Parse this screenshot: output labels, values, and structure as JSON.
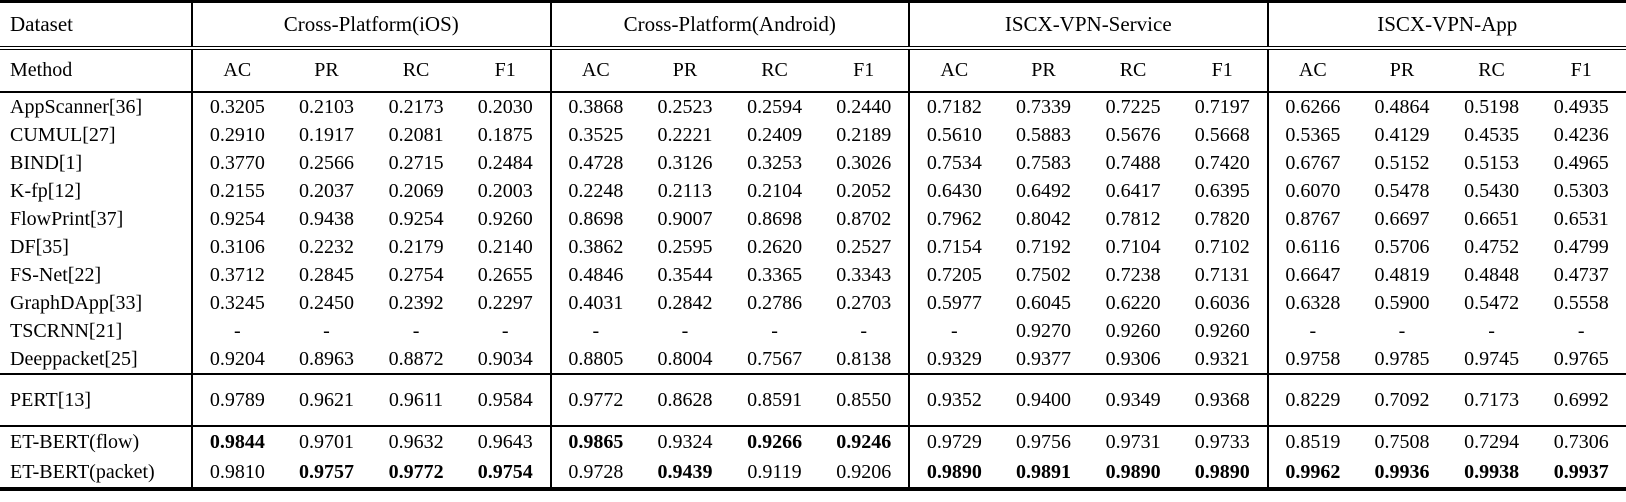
{
  "page": {
    "background_color": "#ffffff",
    "text_color": "#000000"
  },
  "table": {
    "corner": {
      "dataset_label": "Dataset",
      "method_label": "Method"
    },
    "groups": [
      {
        "label": "Cross-Platform(iOS)"
      },
      {
        "label": "Cross-Platform(Android)"
      },
      {
        "label": "ISCX-VPN-Service"
      },
      {
        "label": "ISCX-VPN-App"
      }
    ],
    "metrics": [
      "AC",
      "PR",
      "RC",
      "F1"
    ],
    "sections": [
      {
        "name": "baselines",
        "rows": [
          {
            "method": "AppScanner[36]",
            "values": [
              "0.3205",
              "0.2103",
              "0.2173",
              "0.2030",
              "0.3868",
              "0.2523",
              "0.2594",
              "0.2440",
              "0.7182",
              "0.7339",
              "0.7225",
              "0.7197",
              "0.6266",
              "0.4864",
              "0.5198",
              "0.4935"
            ],
            "bold": []
          },
          {
            "method": "CUMUL[27]",
            "values": [
              "0.2910",
              "0.1917",
              "0.2081",
              "0.1875",
              "0.3525",
              "0.2221",
              "0.2409",
              "0.2189",
              "0.5610",
              "0.5883",
              "0.5676",
              "0.5668",
              "0.5365",
              "0.4129",
              "0.4535",
              "0.4236"
            ],
            "bold": []
          },
          {
            "method": "BIND[1]",
            "values": [
              "0.3770",
              "0.2566",
              "0.2715",
              "0.2484",
              "0.4728",
              "0.3126",
              "0.3253",
              "0.3026",
              "0.7534",
              "0.7583",
              "0.7488",
              "0.7420",
              "0.6767",
              "0.5152",
              "0.5153",
              "0.4965"
            ],
            "bold": []
          },
          {
            "method": "K-fp[12]",
            "values": [
              "0.2155",
              "0.2037",
              "0.2069",
              "0.2003",
              "0.2248",
              "0.2113",
              "0.2104",
              "0.2052",
              "0.6430",
              "0.6492",
              "0.6417",
              "0.6395",
              "0.6070",
              "0.5478",
              "0.5430",
              "0.5303"
            ],
            "bold": []
          },
          {
            "method": "FlowPrint[37]",
            "values": [
              "0.9254",
              "0.9438",
              "0.9254",
              "0.9260",
              "0.8698",
              "0.9007",
              "0.8698",
              "0.8702",
              "0.7962",
              "0.8042",
              "0.7812",
              "0.7820",
              "0.8767",
              "0.6697",
              "0.6651",
              "0.6531"
            ],
            "bold": []
          },
          {
            "method": "DF[35]",
            "values": [
              "0.3106",
              "0.2232",
              "0.2179",
              "0.2140",
              "0.3862",
              "0.2595",
              "0.2620",
              "0.2527",
              "0.7154",
              "0.7192",
              "0.7104",
              "0.7102",
              "0.6116",
              "0.5706",
              "0.4752",
              "0.4799"
            ],
            "bold": []
          },
          {
            "method": "FS-Net[22]",
            "values": [
              "0.3712",
              "0.2845",
              "0.2754",
              "0.2655",
              "0.4846",
              "0.3544",
              "0.3365",
              "0.3343",
              "0.7205",
              "0.7502",
              "0.7238",
              "0.7131",
              "0.6647",
              "0.4819",
              "0.4848",
              "0.4737"
            ],
            "bold": []
          },
          {
            "method": "GraphDApp[33]",
            "values": [
              "0.3245",
              "0.2450",
              "0.2392",
              "0.2297",
              "0.4031",
              "0.2842",
              "0.2786",
              "0.2703",
              "0.5977",
              "0.6045",
              "0.6220",
              "0.6036",
              "0.6328",
              "0.5900",
              "0.5472",
              "0.5558"
            ],
            "bold": []
          },
          {
            "method": "TSCRNN[21]",
            "values": [
              "-",
              "-",
              "-",
              "-",
              "-",
              "-",
              "-",
              "-",
              "-",
              "0.9270",
              "0.9260",
              "0.9260",
              "-",
              "-",
              "-",
              "-"
            ],
            "bold": []
          },
          {
            "method": "Deeppacket[25]",
            "values": [
              "0.9204",
              "0.8963",
              "0.8872",
              "0.9034",
              "0.8805",
              "0.8004",
              "0.7567",
              "0.8138",
              "0.9329",
              "0.9377",
              "0.9306",
              "0.9321",
              "0.9758",
              "0.9785",
              "0.9745",
              "0.9765"
            ],
            "bold": []
          }
        ]
      },
      {
        "name": "pert",
        "rows": [
          {
            "method": "PERT[13]",
            "values": [
              "0.9789",
              "0.9621",
              "0.9611",
              "0.9584",
              "0.9772",
              "0.8628",
              "0.8591",
              "0.8550",
              "0.9352",
              "0.9400",
              "0.9349",
              "0.9368",
              "0.8229",
              "0.7092",
              "0.7173",
              "0.6992"
            ],
            "bold": []
          }
        ]
      },
      {
        "name": "etbert",
        "rows": [
          {
            "method": "ET-BERT(flow)",
            "values": [
              "0.9844",
              "0.9701",
              "0.9632",
              "0.9643",
              "0.9865",
              "0.9324",
              "0.9266",
              "0.9246",
              "0.9729",
              "0.9756",
              "0.9731",
              "0.9733",
              "0.8519",
              "0.7508",
              "0.7294",
              "0.7306"
            ],
            "bold": [
              0,
              4,
              6,
              7
            ]
          },
          {
            "method": "ET-BERT(packet)",
            "values": [
              "0.9810",
              "0.9757",
              "0.9772",
              "0.9754",
              "0.9728",
              "0.9439",
              "0.9119",
              "0.9206",
              "0.9890",
              "0.9891",
              "0.9890",
              "0.9890",
              "0.9962",
              "0.9936",
              "0.9938",
              "0.9937"
            ],
            "bold": [
              1,
              2,
              3,
              5,
              8,
              9,
              10,
              11,
              12,
              13,
              14,
              15
            ]
          }
        ]
      }
    ]
  }
}
